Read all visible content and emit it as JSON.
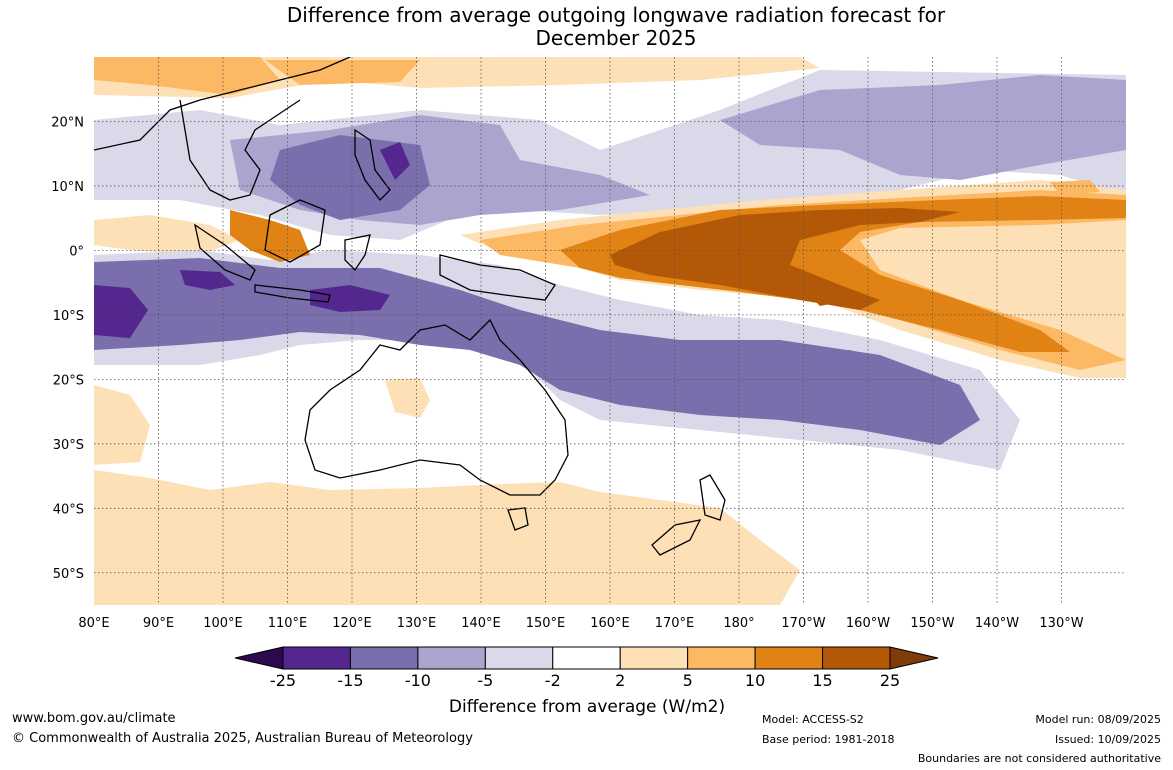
{
  "title": {
    "line1": "Difference from average outgoing longwave radiation forecast for",
    "line2": "December 2025"
  },
  "map": {
    "lon_ticks": [
      "80°E",
      "90°E",
      "100°E",
      "110°E",
      "120°E",
      "130°E",
      "140°E",
      "150°E",
      "160°E",
      "170°E",
      "180°",
      "170°W",
      "160°W",
      "150°W",
      "140°W",
      "130°W"
    ],
    "lat_ticks": [
      "20°N",
      "10°N",
      "0°",
      "10°S",
      "20°S",
      "30°S",
      "40°S",
      "50°S"
    ],
    "extent": {
      "lon_min": 80,
      "lon_max": 240,
      "lat_min": -55,
      "lat_max": 30
    },
    "regions": [
      {
        "name": "central-pacific-positive-band",
        "category": "15 to 25"
      },
      {
        "name": "indonesia-negative-core",
        "category": "-25 to -15"
      },
      {
        "name": "eastern-indian-ocean-negative-core",
        "category": "-25 to -15"
      },
      {
        "name": "south-pacific-negative-band",
        "category": "-15 to -10"
      },
      {
        "name": "southern-ocean-positive-band",
        "category": "2 to 5"
      }
    ]
  },
  "colorbar": {
    "label": "Difference from average (W/m2)",
    "ticks": [
      "-25",
      "-15",
      "-10",
      "-5",
      "-2",
      "2",
      "5",
      "10",
      "15",
      "25"
    ],
    "colors": {
      "under": "#2d0a4e",
      "c1": "#54278f",
      "c2": "#7b6eac",
      "c3": "#aba4cf",
      "c4": "#d9d9ea",
      "c5": "#ffffff",
      "c6": "#fee0b6",
      "c7": "#fdb863",
      "c8": "#e08214",
      "c9": "#b35806",
      "over": "#7f3b08"
    }
  },
  "footer": {
    "website": "www.bom.gov.au/climate",
    "copyright": "© Commonwealth of Australia 2025, Australian Bureau of Meteorology",
    "model": "Model: ACCESS-S2",
    "base_period": "Base period: 1981-2018",
    "model_run": "Model run: 08/09/2025",
    "issued": "Issued: 10/09/2025",
    "disclaimer": "Boundaries are not considered authoritative"
  }
}
